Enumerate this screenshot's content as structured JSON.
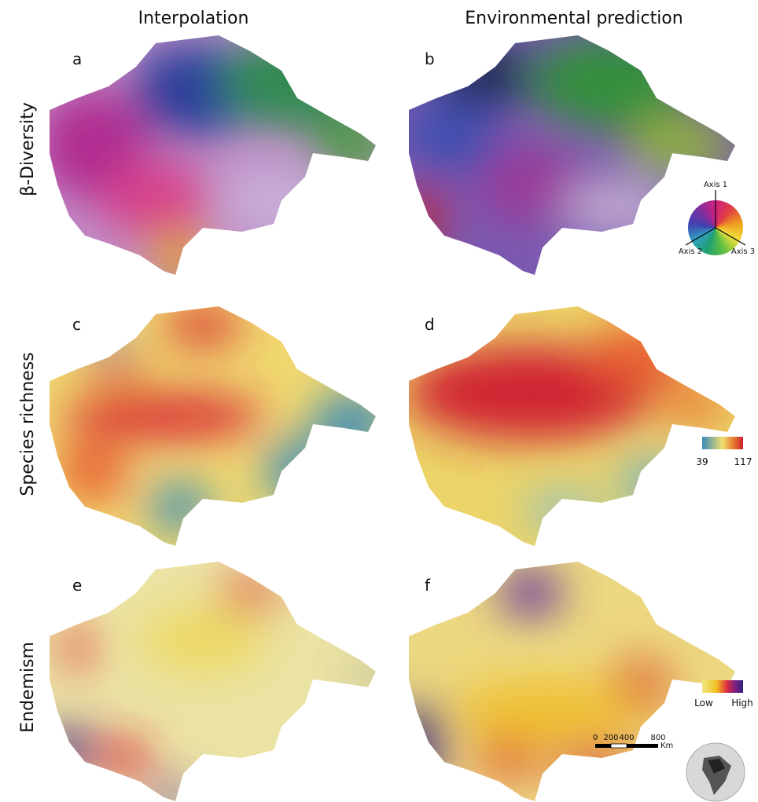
{
  "columns": [
    "Interpolation",
    "Environmental prediction"
  ],
  "rows": [
    "β-Diversity",
    "Species richness",
    "Endemism"
  ],
  "panels": [
    "a",
    "b",
    "c",
    "d",
    "e",
    "f"
  ],
  "legend_beta": {
    "axes": [
      "Axis 1",
      "Axis 2",
      "Axis 3"
    ]
  },
  "legend_richness": {
    "min": "39",
    "max": "117"
  },
  "legend_endemism": {
    "low": "Low",
    "high": "High"
  },
  "scale_bar": {
    "ticks": [
      "0",
      "200",
      "400",
      "800"
    ],
    "unit": "Km"
  }
}
